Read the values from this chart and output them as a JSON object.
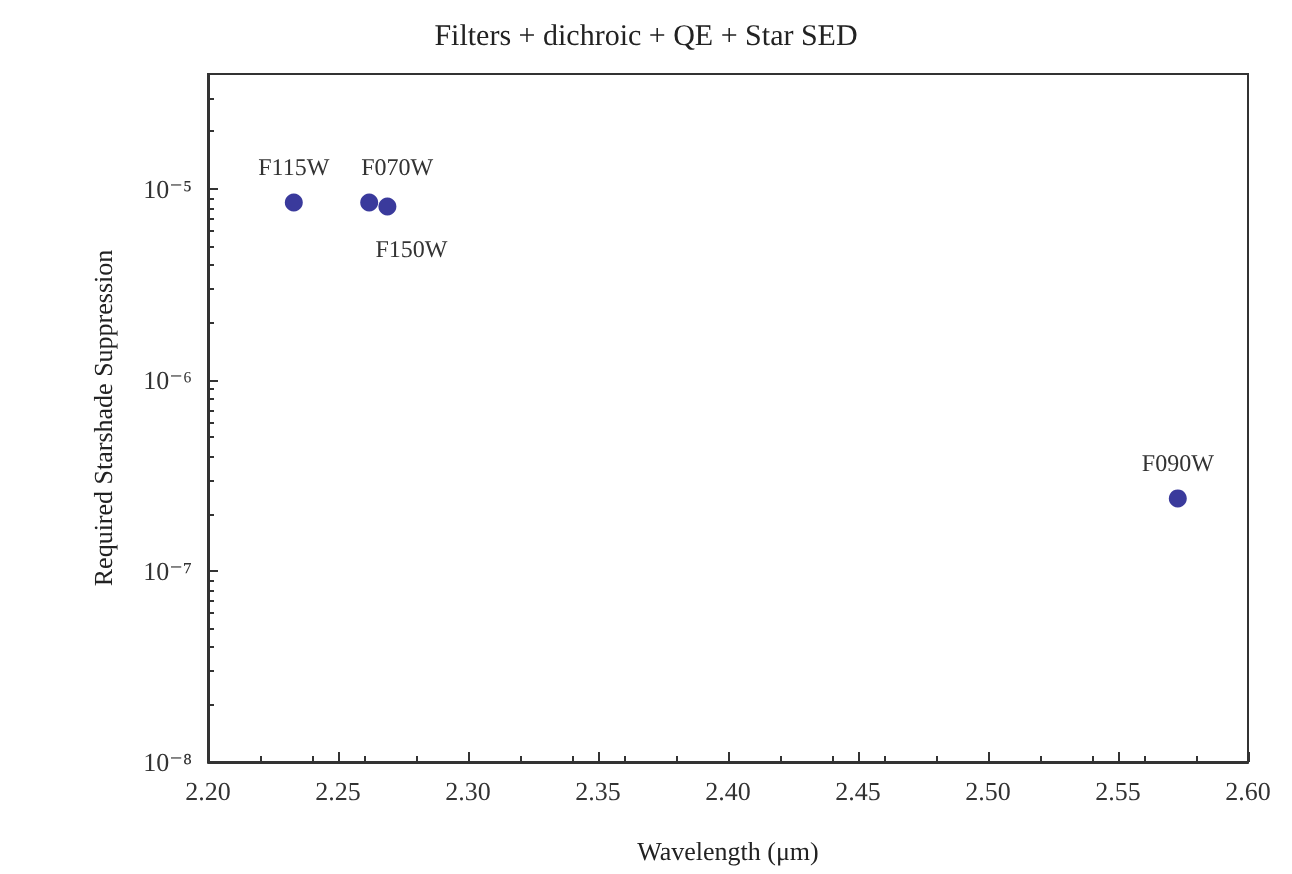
{
  "chart_data": {
    "type": "scatter",
    "title": "Filters + dichroic + QE + Star SED",
    "xlabel": "Wavelength (μm)",
    "ylabel": "Required Starshade Suppression",
    "x": [
      2.233,
      2.262,
      2.269,
      2.573
    ],
    "values": [
      8.5e-06,
      8.5e-06,
      8.1e-06,
      2.4e-07
    ],
    "value_labels": [
      "F115W",
      "F070W",
      "F150W",
      "F090W"
    ],
    "color": "#3a3a9c",
    "marker": "circle",
    "log": "y",
    "grid": false,
    "xlim": [
      2.2,
      2.6
    ],
    "xticks": [
      {
        "value": 2.2,
        "label": "2.20"
      },
      {
        "value": 2.25,
        "label": "2.25"
      },
      {
        "value": 2.3,
        "label": "2.30"
      },
      {
        "value": 2.35,
        "label": "2.35"
      },
      {
        "value": 2.4,
        "label": "2.40"
      },
      {
        "value": 2.45,
        "label": "2.45"
      },
      {
        "value": 2.5,
        "label": "2.50"
      },
      {
        "value": 2.55,
        "label": "2.55"
      },
      {
        "value": 2.6,
        "label": "2.60"
      }
    ],
    "ylim": [
      1e-08,
      4e-05
    ],
    "yticks": [
      {
        "value": 1e-08,
        "label": "10⁻⁸"
      },
      {
        "value": 1e-07,
        "label": "10⁻⁷"
      },
      {
        "value": 1e-06,
        "label": "10⁻⁶"
      },
      {
        "value": 1e-05,
        "label": "10⁻⁵"
      }
    ]
  }
}
